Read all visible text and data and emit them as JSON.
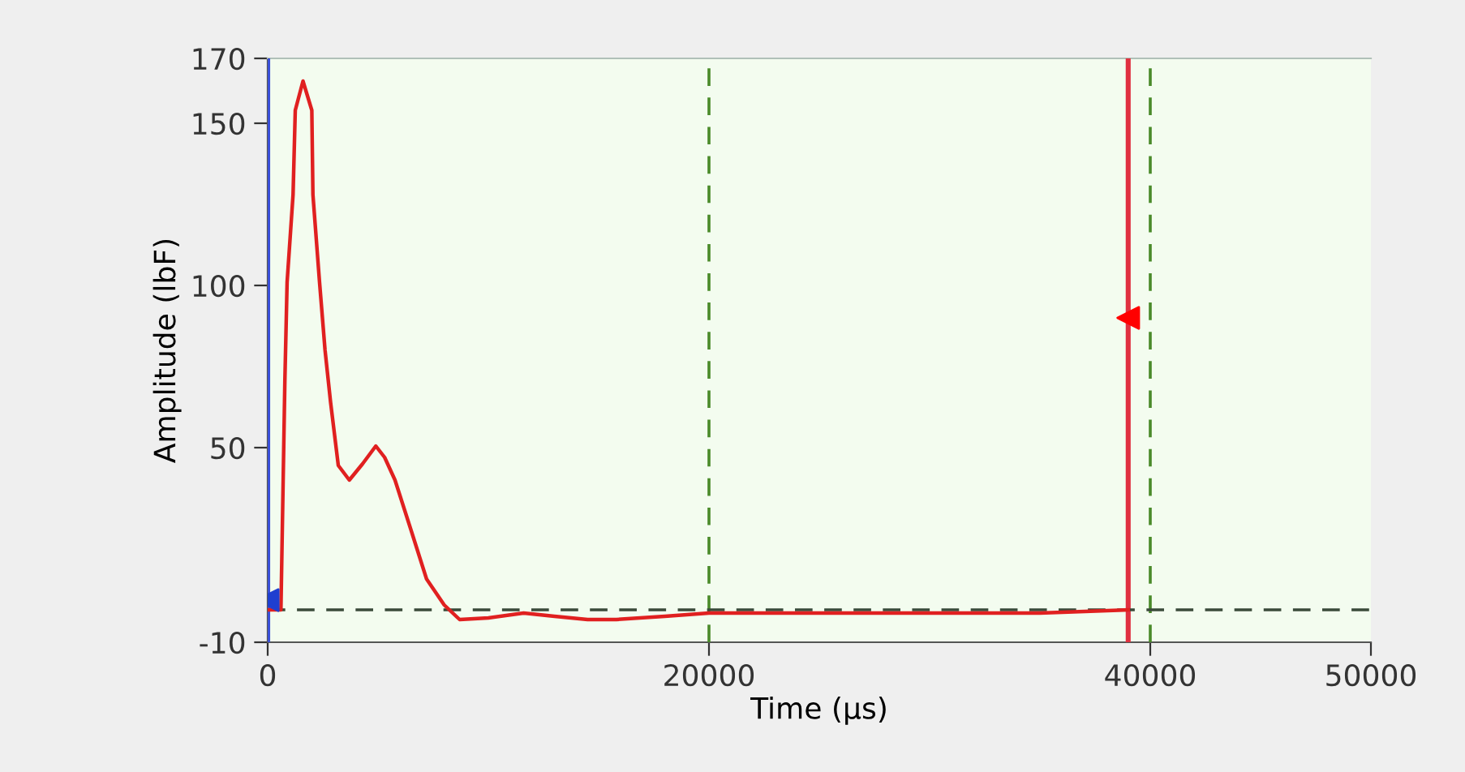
{
  "chart_data": {
    "type": "line",
    "xlabel": "Time (µs)",
    "ylabel": "Amplitude (lbF)",
    "xlim": [
      0,
      50000
    ],
    "xticks": [
      0,
      20000,
      40000,
      50000
    ],
    "ylim": [
      -10,
      170
    ],
    "yticks": [
      -10,
      50,
      100,
      150,
      170
    ],
    "grid": false,
    "legend": false,
    "series": [
      {
        "color": "#e02020",
        "x": [
          0,
          600,
          780,
          880,
          1150,
          1250,
          1600,
          2000,
          2050,
          2350,
          2600,
          2850,
          3200,
          3700,
          4300,
          4900,
          5300,
          5770,
          6500,
          7200,
          8000,
          8700,
          10000,
          11600,
          13000,
          14500,
          15800,
          18000,
          20000,
          25000,
          30000,
          35000,
          39000
        ],
        "values": [
          0,
          0,
          71,
          101,
          128,
          154,
          163,
          154,
          128,
          101,
          80,
          64,
          44.5,
          40,
          45,
          50.5,
          47,
          40,
          24.5,
          9.5,
          1.5,
          -3,
          -2.5,
          -1,
          -2,
          -3,
          -3,
          -2,
          -1,
          -1,
          -1,
          -1,
          0
        ]
      },
      {
        "type": "scatter",
        "color": "#ff0000",
        "marker": "triangle",
        "x": [
          39000
        ],
        "values": [
          90
        ]
      },
      {
        "type": "scatter",
        "color": "#1f3fd0",
        "marker": "triangle",
        "x": [
          0
        ],
        "values": [
          3
        ]
      }
    ],
    "ref_lines": [
      {
        "axis": "x",
        "value": 0,
        "color": "#3a4fd8",
        "line_style": "solid"
      },
      {
        "axis": "x",
        "value": 39000,
        "color": "#e03040",
        "line_style": "solid"
      },
      {
        "axis": "x",
        "value": 20000,
        "color": "#4a8a2a",
        "line_style": "dashed"
      },
      {
        "axis": "x",
        "value": 40000,
        "color": "#4a8a2a",
        "line_style": "dashed"
      },
      {
        "axis": "y",
        "value": 0,
        "color": "#3a4a3a",
        "line_style": "dashed"
      }
    ]
  }
}
